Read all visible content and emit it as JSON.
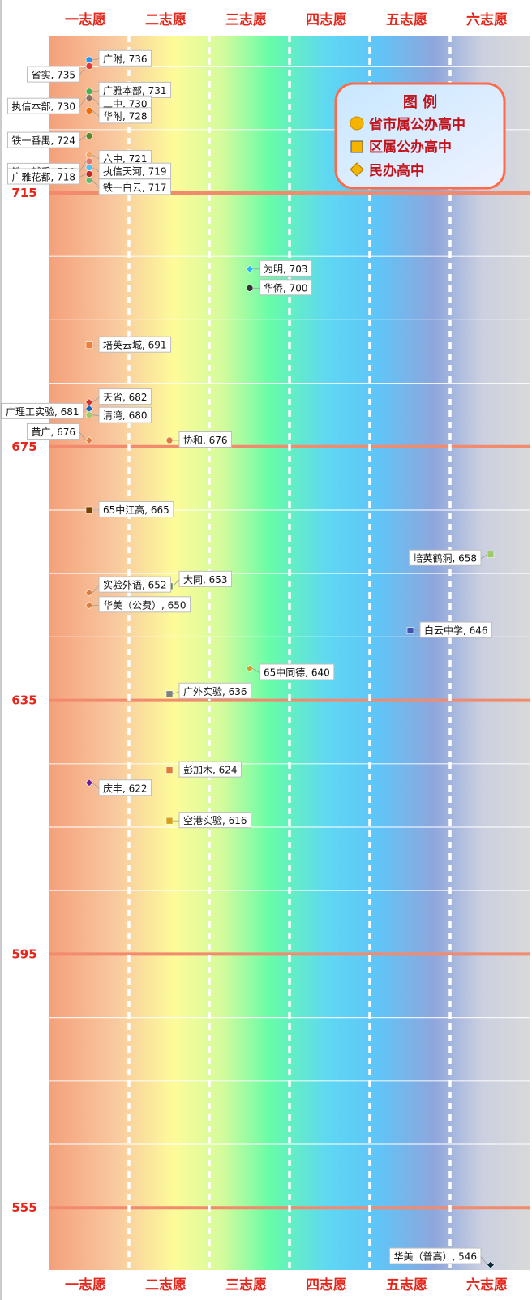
{
  "chart_data": {
    "type": "scatter",
    "categories": [
      "一志愿",
      "二志愿",
      "三志愿",
      "四志愿",
      "五志愿",
      "六志愿"
    ],
    "y_ticks": [
      715,
      675,
      635,
      595,
      555
    ],
    "ylim": [
      544,
      740
    ],
    "legend": {
      "title": "图 例",
      "items": [
        {
          "shape": "circle",
          "label": "省市属公办高中"
        },
        {
          "shape": "square",
          "label": "区属公办高中"
        },
        {
          "shape": "diamond",
          "label": "民办高中"
        }
      ]
    },
    "points": [
      {
        "label": "广附, 736",
        "category": "一志愿",
        "value": 736,
        "shape": "circle",
        "color": "#2196f3"
      },
      {
        "label": "省实, 735",
        "category": "一志愿",
        "value": 735,
        "shape": "circle",
        "color": "#e53935"
      },
      {
        "label": "广雅本部, 731",
        "category": "一志愿",
        "value": 731,
        "shape": "circle",
        "color": "#4caf50"
      },
      {
        "label": "执信本部, 730",
        "category": "一志愿",
        "value": 730,
        "shape": "circle",
        "color": "#2e7d32"
      },
      {
        "label": "二中, 730",
        "category": "一志愿",
        "value": 730,
        "shape": "circle",
        "color": "#8d6e63"
      },
      {
        "label": "华附, 728",
        "category": "一志愿",
        "value": 728,
        "shape": "circle",
        "color": "#ef6c00"
      },
      {
        "label": "铁一番禺, 724",
        "category": "一志愿",
        "value": 724,
        "shape": "circle",
        "color": "#558b2f"
      },
      {
        "label": "六中, 721",
        "category": "一志愿",
        "value": 721,
        "shape": "circle",
        "color": "#f4a460"
      },
      {
        "label": "铁一越秀, 720",
        "category": "一志愿",
        "value": 720,
        "shape": "circle",
        "color": "#e57373"
      },
      {
        "label": "执信天河, 719",
        "category": "一志愿",
        "value": 719,
        "shape": "circle",
        "color": "#4fc3f7"
      },
      {
        "label": "广雅花都, 718",
        "category": "一志愿",
        "value": 718,
        "shape": "circle",
        "color": "#c62828"
      },
      {
        "label": "铁一白云, 717",
        "category": "一志愿",
        "value": 717,
        "shape": "circle",
        "color": "#66bb6a"
      },
      {
        "label": "为明, 703",
        "category": "三志愿",
        "value": 703,
        "shape": "diamond",
        "color": "#29b6f6"
      },
      {
        "label": "华侨, 700",
        "category": "三志愿",
        "value": 700,
        "shape": "circle",
        "color": "#333333"
      },
      {
        "label": "培英云城, 691",
        "category": "一志愿",
        "value": 691,
        "shape": "square",
        "color": "#ef7e3a"
      },
      {
        "label": "天省, 682",
        "category": "一志愿",
        "value": 682,
        "shape": "diamond",
        "color": "#d32f2f"
      },
      {
        "label": "广理工实验, 681",
        "category": "一志愿",
        "value": 681,
        "shape": "diamond",
        "color": "#1565c0"
      },
      {
        "label": "清湾, 680",
        "category": "一志愿",
        "value": 680,
        "shape": "circle",
        "color": "#9ccc65"
      },
      {
        "label": "黄广, 676",
        "category": "一志愿",
        "value": 676,
        "shape": "diamond",
        "color": "#e07b39"
      },
      {
        "label": "协和, 676",
        "category": "二志愿",
        "value": 676,
        "shape": "circle",
        "color": "#e07b39"
      },
      {
        "label": "65中江高, 665",
        "category": "一志愿",
        "value": 665,
        "shape": "square",
        "color": "#7b3f00"
      },
      {
        "label": "培英鹤洞, 658",
        "category": "六志愿",
        "value": 658,
        "shape": "square",
        "color": "#9ccc65"
      },
      {
        "label": "大同, 653",
        "category": "二志愿",
        "value": 653,
        "shape": "square",
        "color": "#558b2f"
      },
      {
        "label": "实验外语, 652",
        "category": "一志愿",
        "value": 652,
        "shape": "diamond",
        "color": "#e07b39"
      },
      {
        "label": "华美（公费）, 650",
        "category": "一志愿",
        "value": 650,
        "shape": "diamond",
        "color": "#e07b39"
      },
      {
        "label": "白云中学, 646",
        "category": "五志愿",
        "value": 646,
        "shape": "square",
        "color": "#3f51b5"
      },
      {
        "label": "65中同德, 640",
        "category": "三志愿",
        "value": 640,
        "shape": "diamond",
        "color": "#c9a227"
      },
      {
        "label": "广外实验, 636",
        "category": "二志愿",
        "value": 636,
        "shape": "square",
        "color": "#808080"
      },
      {
        "label": "彭加木, 624",
        "category": "二志愿",
        "value": 624,
        "shape": "square",
        "color": "#e07b39"
      },
      {
        "label": "庆丰, 622",
        "category": "一志愿",
        "value": 622,
        "shape": "diamond",
        "color": "#6a1b9a"
      },
      {
        "label": "空港实验, 616",
        "category": "二志愿",
        "value": 616,
        "shape": "square",
        "color": "#d4a017"
      },
      {
        "label": "华美（普高）, 546",
        "category": "六志愿",
        "value": 546,
        "shape": "diamond",
        "color": "#0d2a3a"
      }
    ]
  }
}
